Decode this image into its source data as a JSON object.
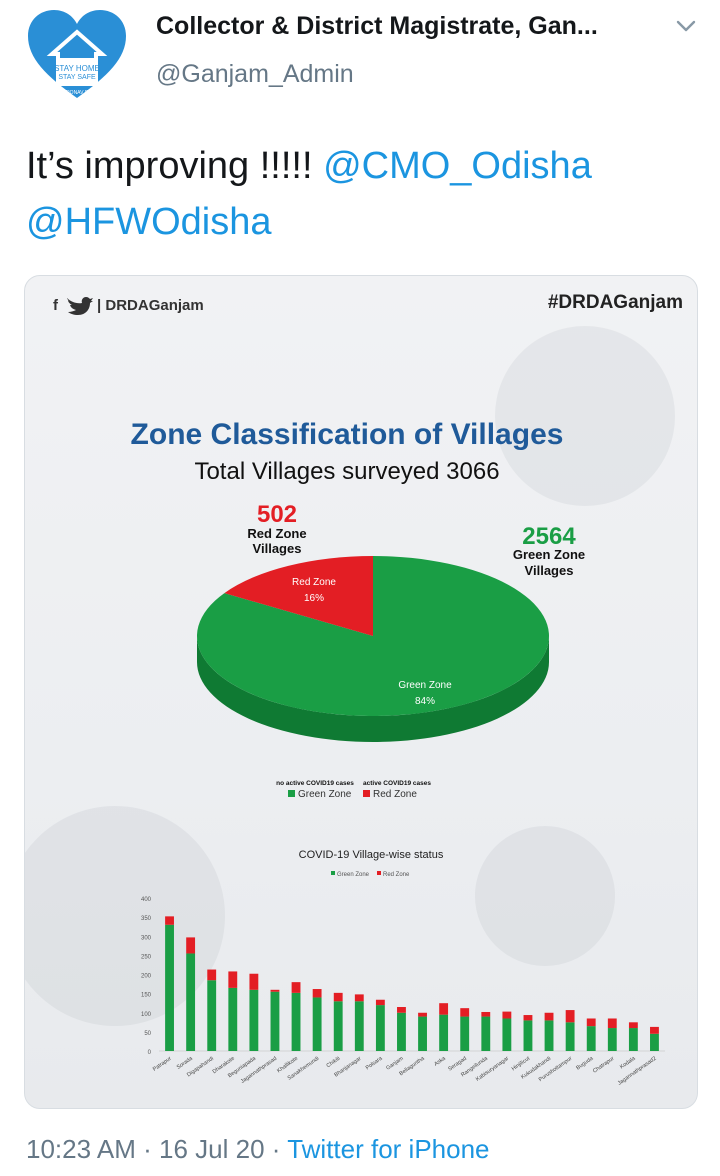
{
  "author": {
    "name": "Collector & District Magistrate, Gan...",
    "handle": "@Ganjam_Admin",
    "avatar_line1": "STAY HOME",
    "avatar_line2": "STAY SAFE",
    "avatar_line3": "CORONAV RUS"
  },
  "tweet": {
    "text": "It’s improving !!!!! ",
    "mentions": [
      "@CMO_Odisha",
      "@HFWOdisha"
    ],
    "time": "10:23 AM",
    "date": "16 Jul 20",
    "source": "Twitter for iPhone",
    "separator": "·"
  },
  "infographic": {
    "social_label": "| DRDAGanjam",
    "hashtag": "#DRDAGanjam",
    "title": "Zone Classification of Villages",
    "subtitle": "Total Villages surveyed 3066",
    "red_value": "502",
    "red_label_1": "Red Zone",
    "red_label_2": "Villages",
    "green_value": "2564",
    "green_label_1": "Green Zone",
    "green_label_2": "Villages",
    "colors": {
      "green": "#1a9e45",
      "red": "#e31e24",
      "title_blue": "#1f5a99"
    }
  },
  "chart_data": [
    {
      "type": "pie",
      "categories": [
        "Green Zone",
        "Red Zone"
      ],
      "values": [
        84,
        16
      ],
      "slice_labels": [
        "Green Zone",
        "Red Zone"
      ],
      "slice_percents": [
        "84%",
        "16%"
      ],
      "legend": [
        {
          "caption": "no active COVID19 cases",
          "label": "Green Zone"
        },
        {
          "caption": "active COVID19 cases",
          "label": "Red Zone"
        }
      ],
      "legend_position": "bottom"
    },
    {
      "type": "bar",
      "title": "COVID-19 Village-wise status",
      "legend_position": "top",
      "ylim": [
        0,
        400
      ],
      "yticks": [
        0,
        50,
        100,
        150,
        200,
        250,
        300,
        350,
        400
      ],
      "categories": [
        "Patrapur",
        "Sorada",
        "Digapahandi",
        "Dharakote",
        "Beguniapada",
        "Jagannathprasad",
        "Khallikote",
        "Sanakhemundi",
        "Chikiti",
        "Bhanjanagar",
        "Polsara",
        "Ganjam",
        "Bellaguntha",
        "Aska",
        "Seragad",
        "Rangeilunda",
        "Kabisuryanagar",
        "Hinjilicut",
        "Kukudakhandi",
        "Purushottampur",
        "Buguda",
        "Chatrapur",
        "Kodala",
        "Jagannathprasad2"
      ],
      "series": [
        {
          "name": "Green Zone",
          "values": [
            330,
            255,
            185,
            165,
            160,
            155,
            152,
            140,
            130,
            130,
            120,
            100,
            90,
            95,
            90,
            90,
            85,
            80,
            80,
            75,
            65,
            60,
            60,
            45
          ]
        },
        {
          "name": "Red Zone",
          "values": [
            22,
            42,
            28,
            43,
            42,
            5,
            28,
            22,
            22,
            18,
            14,
            15,
            10,
            30,
            22,
            12,
            18,
            14,
            20,
            32,
            20,
            25,
            15,
            18
          ]
        }
      ]
    }
  ]
}
